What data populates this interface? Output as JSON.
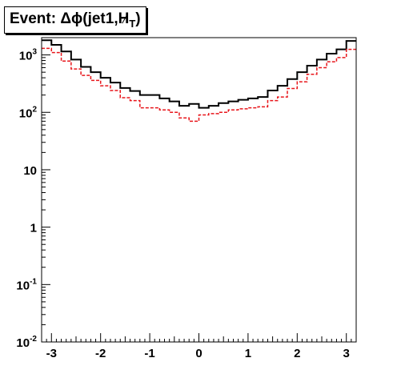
{
  "title": {
    "prefix": "Event: ",
    "delta_phi": "Δϕ(jet1,",
    "slashed": "H",
    "subscript": "T",
    "suffix": ")"
  },
  "colors": {
    "series_1": "#000000",
    "series_2": "#e8161b",
    "axis": "#000000",
    "background": "#ffffff"
  },
  "chart_data": {
    "type": "line",
    "style": "step histogram",
    "title": "",
    "xlabel": "",
    "ylabel": "",
    "xlim": [
      -3.2,
      3.2
    ],
    "ylim": [
      0.01,
      2000
    ],
    "yscale": "log",
    "grid": false,
    "legend": "none",
    "x_ticks": [
      "-3",
      "-2",
      "-1",
      "0",
      "1",
      "2",
      "3"
    ],
    "y_ticks": [
      {
        "base": "10",
        "exp": "-2"
      },
      {
        "base": "10",
        "exp": "-1"
      },
      {
        "base": "1",
        "exp": ""
      },
      {
        "base": "10",
        "exp": ""
      },
      {
        "base": "10",
        "exp": "2"
      },
      {
        "base": "10",
        "exp": "3"
      }
    ],
    "bin_edges": [
      -3.2,
      -3.0,
      -2.8,
      -2.6,
      -2.4,
      -2.2,
      -2.0,
      -1.8,
      -1.6,
      -1.4,
      -1.2,
      -1.0,
      -0.8,
      -0.6,
      -0.4,
      -0.2,
      0.0,
      0.2,
      0.4,
      0.6,
      0.8,
      1.0,
      1.2,
      1.4,
      1.6,
      1.8,
      2.0,
      2.2,
      2.4,
      2.6,
      2.8,
      3.0,
      3.2
    ],
    "series": [
      {
        "line": "solid",
        "values": [
          1800,
          1500,
          1150,
          830,
          620,
          500,
          400,
          330,
          265,
          235,
          200,
          200,
          175,
          155,
          130,
          140,
          120,
          130,
          145,
          155,
          165,
          175,
          185,
          240,
          290,
          380,
          500,
          650,
          830,
          1050,
          1250,
          1750
        ]
      },
      {
        "line": "dashed",
        "values": [
          1300,
          1100,
          780,
          570,
          440,
          360,
          290,
          240,
          180,
          160,
          120,
          120,
          110,
          100,
          80,
          70,
          90,
          95,
          100,
          110,
          115,
          120,
          125,
          160,
          185,
          260,
          340,
          460,
          600,
          760,
          900,
          1250
        ]
      }
    ]
  }
}
